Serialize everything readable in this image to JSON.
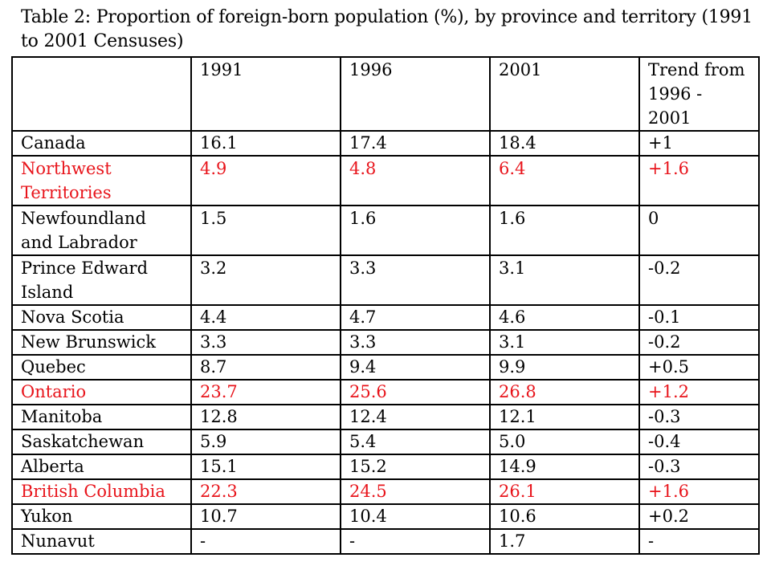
{
  "caption": "Table 2: Proportion of foreign-born population (%), by province and territory (1991 to 2001 Censuses)",
  "colors": {
    "highlight": "#e8141b",
    "text": "#000000",
    "border": "#000000"
  },
  "header": [
    "",
    "1991",
    "1996",
    "2001",
    "Trend from 1996 - 2001"
  ],
  "rows": [
    {
      "name": "Canada",
      "y1991": "16.1",
      "y1996": "17.4",
      "y2001": "18.4",
      "trend": "+1",
      "highlight": false
    },
    {
      "name": "Northwest Territories",
      "y1991": "4.9",
      "y1996": "4.8",
      "y2001": "6.4",
      "trend": "+1.6",
      "highlight": true
    },
    {
      "name": "Newfoundland and Labrador",
      "y1991": "1.5",
      "y1996": "1.6",
      "y2001": "1.6",
      "trend": "0",
      "highlight": false
    },
    {
      "name": "Prince Edward Island",
      "y1991": "3.2",
      "y1996": "3.3",
      "y2001": "3.1",
      "trend": "-0.2",
      "highlight": false
    },
    {
      "name": "Nova Scotia",
      "y1991": "4.4",
      "y1996": "4.7",
      "y2001": "4.6",
      "trend": "-0.1",
      "highlight": false
    },
    {
      "name": "New Brunswick",
      "y1991": "3.3",
      "y1996": "3.3",
      "y2001": "3.1",
      "trend": "-0.2",
      "highlight": false
    },
    {
      "name": "Quebec",
      "y1991": "8.7",
      "y1996": "9.4",
      "y2001": "9.9",
      "trend": "+0.5",
      "highlight": false
    },
    {
      "name": "Ontario",
      "y1991": "23.7",
      "y1996": "25.6",
      "y2001": "26.8",
      "trend": "+1.2",
      "highlight": true
    },
    {
      "name": "Manitoba",
      "y1991": "12.8",
      "y1996": "12.4",
      "y2001": "12.1",
      "trend": "-0.3",
      "highlight": false
    },
    {
      "name": "Saskatchewan",
      "y1991": "5.9",
      "y1996": "5.4",
      "y2001": "5.0",
      "trend": "-0.4",
      "highlight": false
    },
    {
      "name": "Alberta",
      "y1991": "15.1",
      "y1996": "15.2",
      "y2001": "14.9",
      "trend": "-0.3",
      "highlight": false
    },
    {
      "name": "British Columbia",
      "y1991": "22.3",
      "y1996": "24.5",
      "y2001": "26.1",
      "trend": "+1.6",
      "highlight": true
    },
    {
      "name": "Yukon",
      "y1991": "10.7",
      "y1996": "10.4",
      "y2001": "10.6",
      "trend": "+0.2",
      "highlight": false
    },
    {
      "name": "Nunavut",
      "y1991": "-",
      "y1996": "-",
      "y2001": "1.7",
      "trend": "-",
      "highlight": false
    }
  ]
}
